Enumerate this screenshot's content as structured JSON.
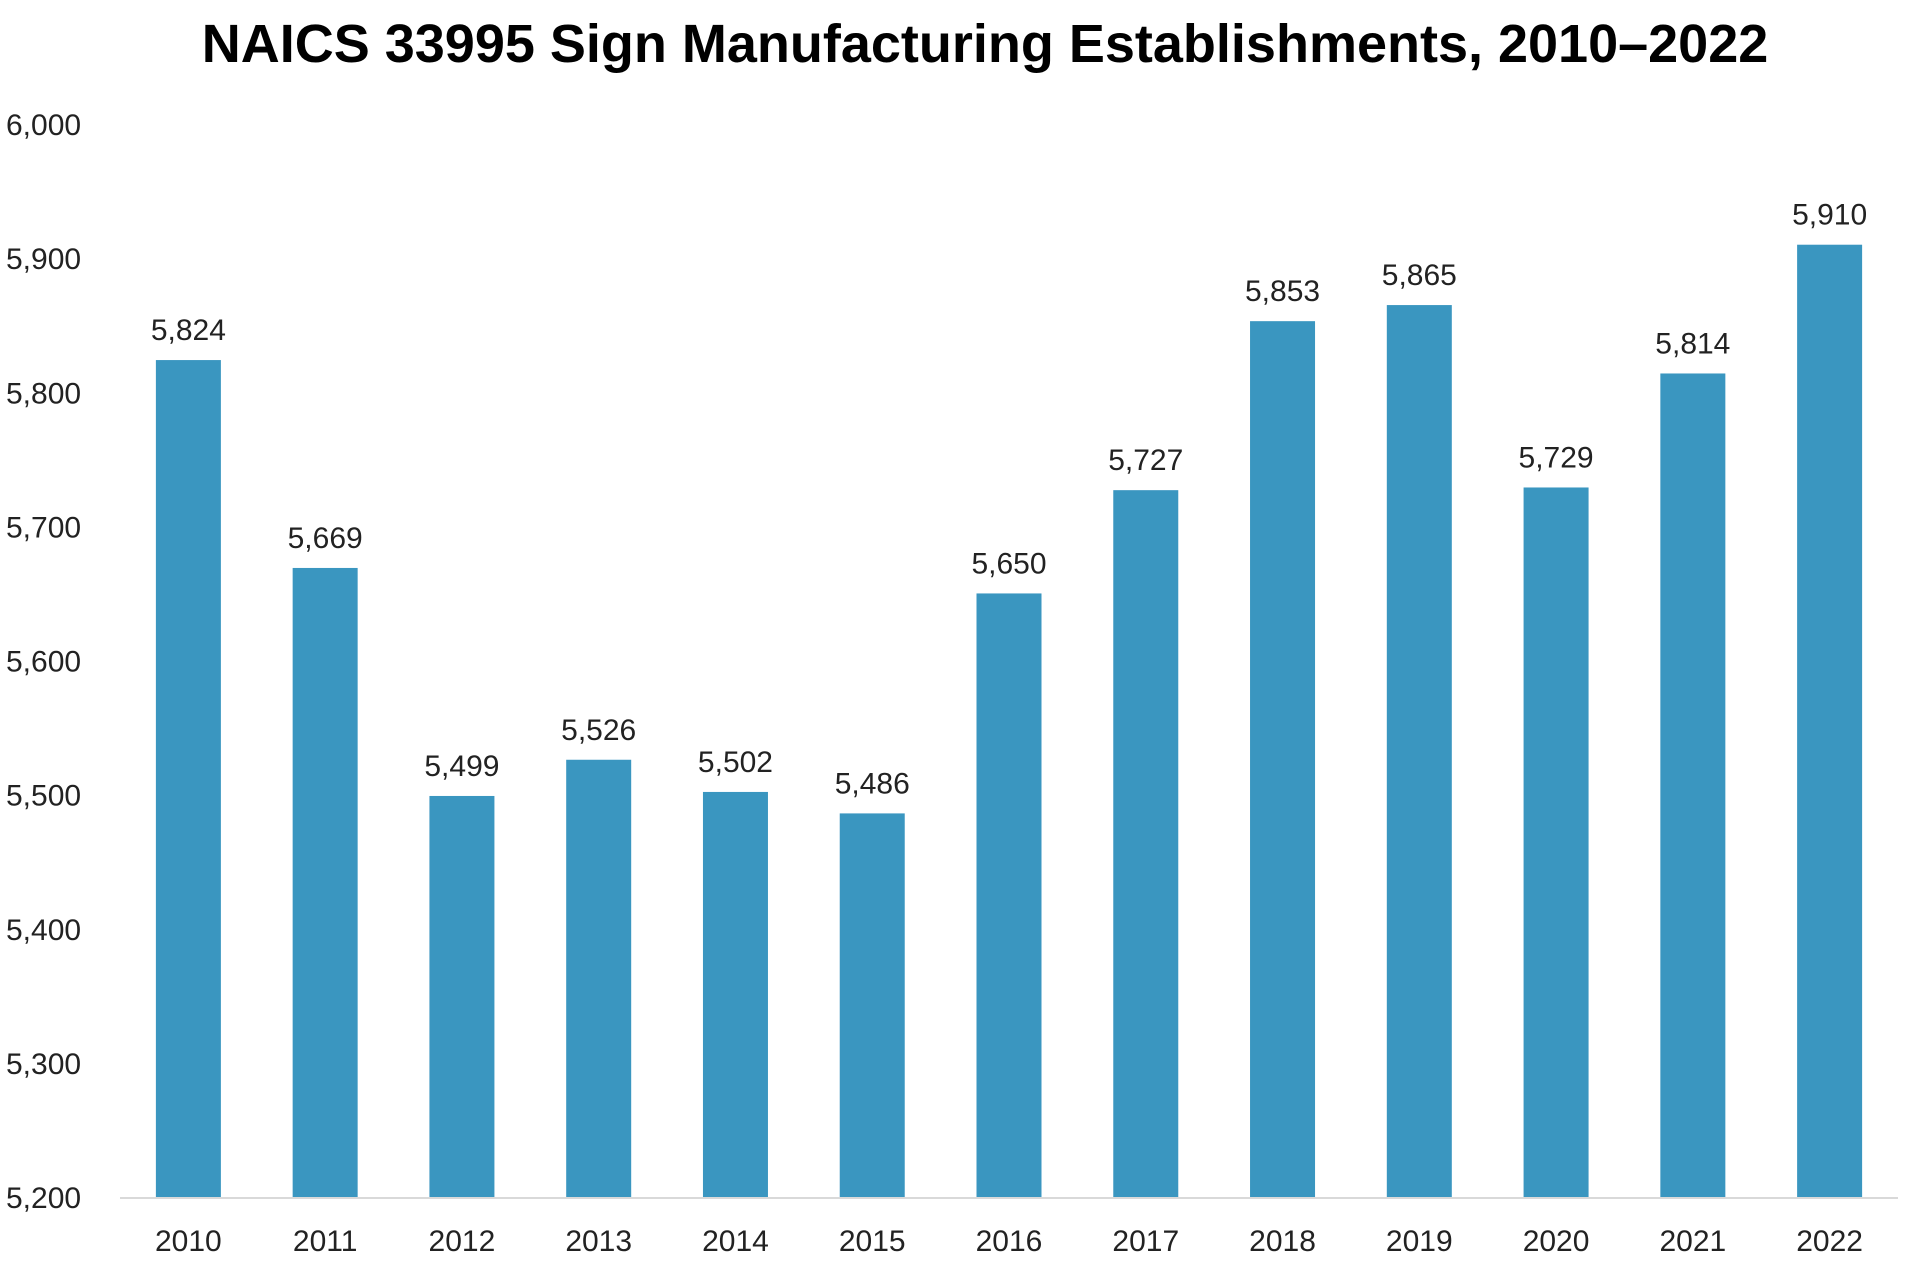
{
  "chart_data": {
    "type": "bar",
    "title": "NAICS 33995 Sign Manufacturing Establishments, 2010–2022",
    "xlabel": "",
    "ylabel": "",
    "categories": [
      "2010",
      "2011",
      "2012",
      "2013",
      "2014",
      "2015",
      "2016",
      "2017",
      "2018",
      "2019",
      "2020",
      "2021",
      "2022"
    ],
    "values": [
      5824,
      5669,
      5499,
      5526,
      5502,
      5486,
      5650,
      5727,
      5853,
      5865,
      5729,
      5814,
      5910
    ],
    "data_labels": [
      "5,824",
      "5,669",
      "5,499",
      "5,526",
      "5,502",
      "5,486",
      "5,650",
      "5,727",
      "5,853",
      "5,865",
      "5,729",
      "5,814",
      "5,910"
    ],
    "ylim": [
      5200,
      6000
    ],
    "yticks": [
      5200,
      5300,
      5400,
      5500,
      5600,
      5700,
      5800,
      5900,
      6000
    ],
    "ytick_labels": [
      "5,200",
      "5,300",
      "5,400",
      "5,500",
      "5,600",
      "5,700",
      "5,800",
      "5,900",
      "6,000"
    ],
    "grid": false,
    "legend": "none",
    "colors": {
      "bar": "#3A96C0",
      "axis_line": "#D9D9D9",
      "text": "#222222"
    }
  }
}
